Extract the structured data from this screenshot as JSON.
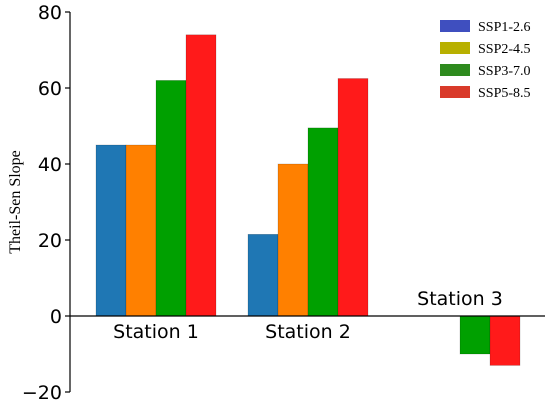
{
  "chart_data": {
    "type": "bar",
    "categories": [
      "Station 1",
      "Station 2",
      "Station 3"
    ],
    "series": [
      {
        "name": "SSP1-2.6",
        "color": "#1f77b4",
        "values": [
          45,
          21.5,
          0
        ]
      },
      {
        "name": "SSP2-4.5",
        "color": "#ff8000",
        "values": [
          45,
          40,
          0
        ]
      },
      {
        "name": "SSP3-7.0",
        "color": "#00a000",
        "values": [
          62,
          49.5,
          -10
        ]
      },
      {
        "name": "SSP5-8.5",
        "color": "#ff1a1a",
        "values": [
          74,
          62.5,
          -13
        ]
      }
    ],
    "legend_colors": [
      "#3f4fbf",
      "#b8b000",
      "#2e8a1e",
      "#d93a2a"
    ],
    "xlabel": "",
    "ylabel": "Theil-Sen Slope",
    "ylim": [
      -20,
      80
    ],
    "yticks": [
      "−20",
      "0",
      "20",
      "40",
      "60",
      "80"
    ],
    "grid": false,
    "legend_position": "top-right"
  }
}
